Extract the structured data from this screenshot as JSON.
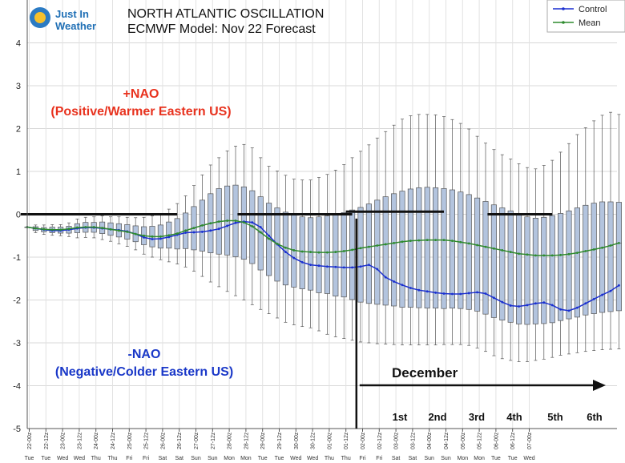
{
  "title": {
    "line1": "NORTH ATLANTIC OSCILLATION",
    "line2": "ECMWF Model: Nov 22 Forecast"
  },
  "logo": {
    "line1": "Just In",
    "line2": "Weather"
  },
  "annotations": {
    "positive_1": "+NAO",
    "positive_2": "(Positive/Warmer Eastern US)",
    "negative_1": "-NAO",
    "negative_2": "(Negative/Colder Eastern US)",
    "month": "December",
    "days": [
      "1st",
      "2nd",
      "3rd",
      "4th",
      "5th",
      "6th"
    ]
  },
  "colors": {
    "control": "#1a2fd0",
    "mean": "#2e8b2e",
    "box_fill": "#b3c4de",
    "box_stroke": "#555555",
    "positive": "#e8321e",
    "negative": "#1a38c8"
  },
  "chart_data": {
    "type": "box",
    "ylim": [
      -5,
      5
    ],
    "yticks": [
      -5,
      -4,
      -3,
      -2,
      -1,
      0,
      1,
      2,
      3,
      4
    ],
    "grid": true,
    "legend_position": "top-right",
    "x_labels": [
      "22-00z",
      "22-12z",
      "23-00z",
      "23-12z",
      "24-00z",
      "24-12z",
      "25-00z",
      "25-12z",
      "26-00z",
      "26-12z",
      "27-00z",
      "27-12z",
      "28-00z",
      "28-12z",
      "29-00z",
      "29-12z",
      "30-00z",
      "30-12z",
      "01-00z",
      "01-12z",
      "02-00z",
      "02-12z",
      "03-00z",
      "03-12z",
      "04-00z",
      "04-12z",
      "05-00z",
      "05-12z",
      "06-00z",
      "06-12z",
      "07-00z"
    ],
    "x_days": [
      "Tue",
      "Tue",
      "Wed",
      "Wed",
      "Thu",
      "Thu",
      "Fri",
      "Fri",
      "Sat",
      "Sat",
      "Sun",
      "Sun",
      "Mon",
      "Mon",
      "Tue",
      "Tue",
      "Wed",
      "Wed",
      "Thu",
      "Thu",
      "Fri",
      "Fri",
      "Sat",
      "Sat",
      "Sun",
      "Sun",
      "Mon",
      "Mon",
      "Tue",
      "Tue",
      "Wed"
    ],
    "steps_per_label": 2,
    "series": [
      {
        "name": "Control",
        "values": [
          -0.3,
          -0.33,
          -0.36,
          -0.38,
          -0.38,
          -0.36,
          -0.33,
          -0.31,
          -0.31,
          -0.33,
          -0.35,
          -0.37,
          -0.4,
          -0.46,
          -0.54,
          -0.58,
          -0.57,
          -0.53,
          -0.48,
          -0.43,
          -0.42,
          -0.41,
          -0.38,
          -0.34,
          -0.27,
          -0.2,
          -0.17,
          -0.19,
          -0.3,
          -0.5,
          -0.7,
          -0.88,
          -1.02,
          -1.12,
          -1.18,
          -1.2,
          -1.22,
          -1.23,
          -1.24,
          -1.24,
          -1.22,
          -1.18,
          -1.28,
          -1.47,
          -1.57,
          -1.65,
          -1.72,
          -1.77,
          -1.8,
          -1.83,
          -1.85,
          -1.86,
          -1.86,
          -1.84,
          -1.82,
          -1.85,
          -1.95,
          -2.05,
          -2.13,
          -2.15,
          -2.12,
          -2.08,
          -2.06,
          -2.12,
          -2.22,
          -2.25,
          -2.18,
          -2.08,
          -1.98,
          -1.88,
          -1.79,
          -1.66
        ]
      },
      {
        "name": "Mean",
        "values": [
          -0.3,
          -0.33,
          -0.35,
          -0.36,
          -0.36,
          -0.34,
          -0.31,
          -0.3,
          -0.3,
          -0.32,
          -0.35,
          -0.38,
          -0.41,
          -0.46,
          -0.5,
          -0.52,
          -0.52,
          -0.49,
          -0.45,
          -0.38,
          -0.32,
          -0.26,
          -0.21,
          -0.17,
          -0.15,
          -0.15,
          -0.19,
          -0.28,
          -0.42,
          -0.57,
          -0.69,
          -0.78,
          -0.84,
          -0.87,
          -0.88,
          -0.89,
          -0.89,
          -0.88,
          -0.86,
          -0.83,
          -0.79,
          -0.76,
          -0.73,
          -0.7,
          -0.67,
          -0.64,
          -0.62,
          -0.61,
          -0.6,
          -0.6,
          -0.6,
          -0.62,
          -0.65,
          -0.68,
          -0.72,
          -0.76,
          -0.8,
          -0.84,
          -0.88,
          -0.92,
          -0.94,
          -0.96,
          -0.96,
          -0.96,
          -0.95,
          -0.93,
          -0.9,
          -0.86,
          -0.82,
          -0.78,
          -0.73,
          -0.67
        ]
      }
    ],
    "boxes": [
      [
        -0.3,
        -0.3,
        -0.3,
        -0.3,
        -0.3
      ],
      [
        -0.43,
        -0.38,
        -0.34,
        -0.29,
        -0.25
      ],
      [
        -0.47,
        -0.41,
        -0.36,
        -0.31,
        -0.25
      ],
      [
        -0.49,
        -0.43,
        -0.37,
        -0.3,
        -0.24
      ],
      [
        -0.5,
        -0.44,
        -0.37,
        -0.3,
        -0.24
      ],
      [
        -0.52,
        -0.44,
        -0.36,
        -0.28,
        -0.2
      ],
      [
        -0.55,
        -0.43,
        -0.33,
        -0.22,
        -0.11
      ],
      [
        -0.54,
        -0.42,
        -0.31,
        -0.19,
        -0.07
      ],
      [
        -0.55,
        -0.42,
        -0.3,
        -0.19,
        -0.06
      ],
      [
        -0.59,
        -0.45,
        -0.31,
        -0.18,
        -0.04
      ],
      [
        -0.63,
        -0.49,
        -0.35,
        -0.2,
        -0.06
      ],
      [
        -0.69,
        -0.53,
        -0.37,
        -0.22,
        -0.06
      ],
      [
        -0.75,
        -0.58,
        -0.41,
        -0.24,
        -0.07
      ],
      [
        -0.83,
        -0.64,
        -0.46,
        -0.27,
        -0.08
      ],
      [
        -0.93,
        -0.71,
        -0.5,
        -0.29,
        -0.07
      ],
      [
        -1.0,
        -0.76,
        -0.52,
        -0.28,
        -0.04
      ],
      [
        -1.06,
        -0.79,
        -0.52,
        -0.25,
        0.02
      ],
      [
        -1.11,
        -0.79,
        -0.49,
        -0.18,
        0.12
      ],
      [
        -1.16,
        -0.81,
        -0.45,
        -0.1,
        0.25
      ],
      [
        -1.23,
        -0.8,
        -0.39,
        0.03,
        0.43
      ],
      [
        -1.33,
        -0.83,
        -0.32,
        0.18,
        0.67
      ],
      [
        -1.45,
        -0.86,
        -0.26,
        0.33,
        0.92
      ],
      [
        -1.58,
        -0.9,
        -0.21,
        0.48,
        1.15
      ],
      [
        -1.69,
        -0.93,
        -0.17,
        0.6,
        1.32
      ],
      [
        -1.8,
        -0.95,
        -0.15,
        0.66,
        1.48
      ],
      [
        -1.9,
        -0.99,
        -0.15,
        0.68,
        1.59
      ],
      [
        -2.0,
        -1.05,
        -0.19,
        0.64,
        1.63
      ],
      [
        -2.11,
        -1.15,
        -0.28,
        0.55,
        1.55
      ],
      [
        -2.22,
        -1.3,
        -0.42,
        0.41,
        1.32
      ],
      [
        -2.32,
        -1.43,
        -0.57,
        0.26,
        1.12
      ],
      [
        -2.42,
        -1.56,
        -0.69,
        0.15,
        1.01
      ],
      [
        -2.52,
        -1.65,
        -0.78,
        0.05,
        0.91
      ],
      [
        -2.58,
        -1.7,
        -0.84,
        -0.02,
        0.82
      ],
      [
        -2.62,
        -1.74,
        -0.87,
        -0.06,
        0.8
      ],
      [
        -2.65,
        -1.77,
        -0.88,
        -0.08,
        0.8
      ],
      [
        -2.72,
        -1.83,
        -0.89,
        -0.06,
        0.86
      ],
      [
        -2.8,
        -1.85,
        -0.89,
        -0.04,
        0.93
      ],
      [
        -2.86,
        -1.91,
        -0.88,
        -0.01,
        1.03
      ],
      [
        -2.9,
        -1.93,
        -0.86,
        0.04,
        1.16
      ],
      [
        -2.94,
        -1.99,
        -0.83,
        0.1,
        1.32
      ],
      [
        -2.98,
        -2.05,
        -0.79,
        0.16,
        1.47
      ],
      [
        -3.0,
        -2.08,
        -0.76,
        0.24,
        1.62
      ],
      [
        -3.02,
        -2.1,
        -0.73,
        0.33,
        1.78
      ],
      [
        -3.03,
        -2.12,
        -0.7,
        0.41,
        1.93
      ],
      [
        -3.04,
        -2.14,
        -0.67,
        0.48,
        2.08
      ],
      [
        -3.05,
        -2.17,
        -0.64,
        0.54,
        2.22
      ],
      [
        -3.05,
        -2.17,
        -0.62,
        0.59,
        2.3
      ],
      [
        -3.05,
        -2.18,
        -0.61,
        0.62,
        2.33
      ],
      [
        -3.05,
        -2.19,
        -0.6,
        0.63,
        2.33
      ],
      [
        -3.05,
        -2.19,
        -0.6,
        0.62,
        2.32
      ],
      [
        -3.04,
        -2.2,
        -0.6,
        0.6,
        2.28
      ],
      [
        -3.04,
        -2.19,
        -0.62,
        0.57,
        2.21
      ],
      [
        -3.04,
        -2.2,
        -0.65,
        0.52,
        2.12
      ],
      [
        -3.06,
        -2.22,
        -0.68,
        0.46,
        1.99
      ],
      [
        -3.12,
        -2.26,
        -0.72,
        0.38,
        1.82
      ],
      [
        -3.2,
        -2.33,
        -0.76,
        0.3,
        1.66
      ],
      [
        -3.3,
        -2.41,
        -0.8,
        0.22,
        1.51
      ],
      [
        -3.37,
        -2.47,
        -0.84,
        0.15,
        1.39
      ],
      [
        -3.41,
        -2.52,
        -0.88,
        0.08,
        1.29
      ],
      [
        -3.44,
        -2.56,
        -0.92,
        0.01,
        1.18
      ],
      [
        -3.44,
        -2.57,
        -0.94,
        -0.06,
        1.09
      ],
      [
        -3.41,
        -2.56,
        -0.96,
        -0.09,
        1.06
      ],
      [
        -3.38,
        -2.55,
        -0.96,
        -0.07,
        1.14
      ],
      [
        -3.34,
        -2.53,
        -0.96,
        -0.03,
        1.26
      ],
      [
        -3.29,
        -2.48,
        -0.95,
        0.02,
        1.45
      ],
      [
        -3.26,
        -2.44,
        -0.93,
        0.08,
        1.65
      ],
      [
        -3.23,
        -2.4,
        -0.9,
        0.15,
        1.86
      ],
      [
        -3.2,
        -2.35,
        -0.86,
        0.21,
        2.02
      ],
      [
        -3.18,
        -2.32,
        -0.82,
        0.26,
        2.18
      ],
      [
        -3.16,
        -2.29,
        -0.78,
        0.29,
        2.31
      ],
      [
        -3.15,
        -2.27,
        -0.73,
        0.29,
        2.38
      ],
      [
        -3.14,
        -2.25,
        -0.67,
        0.28,
        2.33
      ]
    ],
    "reference_segments": [
      {
        "x_from": 0,
        "x_to": 18,
        "y": 0
      },
      {
        "x_from": 26,
        "x_to": 39,
        "y": 0
      },
      {
        "x_from": 39,
        "x_to": 50,
        "y": 0.06
      },
      {
        "x_from": 56,
        "x_to": 63,
        "y": 0
      }
    ],
    "marker_index": 39.5
  }
}
